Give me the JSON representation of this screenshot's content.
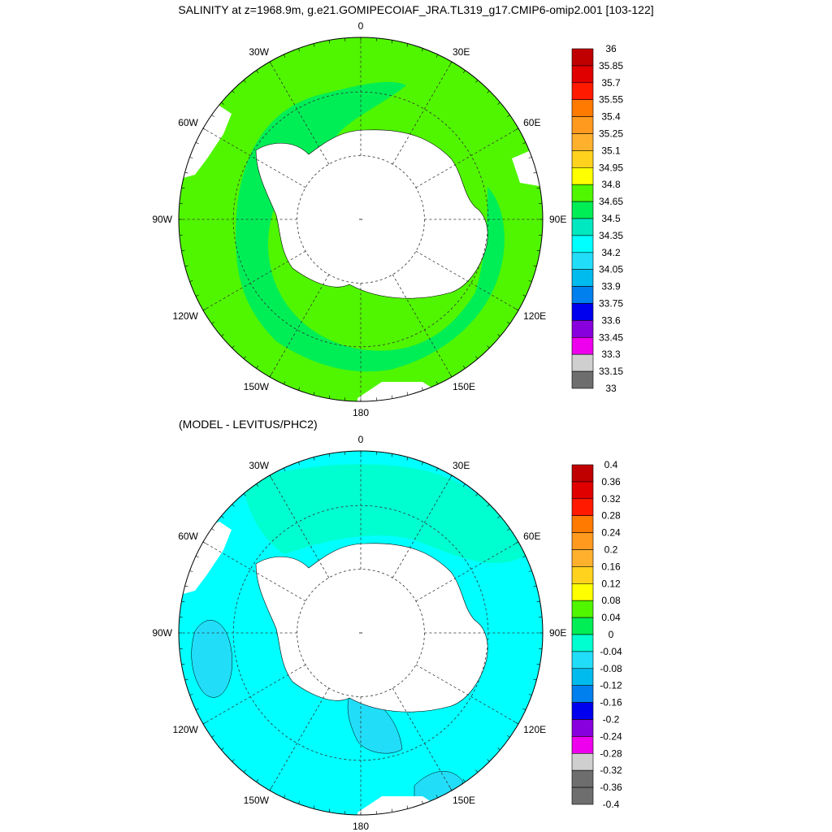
{
  "title": "SALINITY at z=1968.9m, g.e21.GOMIPECOIAF_JRA.TL319_g17.CMIP6-omip2.001 [103-122]",
  "subtitle": "(MODEL - LEVITUS/PHC2)",
  "longitude_labels": [
    "0",
    "30E",
    "60E",
    "90E",
    "120E",
    "150E",
    "180",
    "150W",
    "120W",
    "90W",
    "60W",
    "30W"
  ],
  "top_colorbar": {
    "labels": [
      "36",
      "35.85",
      "35.7",
      "35.55",
      "35.4",
      "35.25",
      "35.1",
      "34.95",
      "34.8",
      "34.65",
      "34.5",
      "34.35",
      "34.2",
      "34.05",
      "33.9",
      "33.75",
      "33.6",
      "33.45",
      "33.3",
      "33.15",
      "33"
    ],
    "colors": [
      "#c00000",
      "#e00000",
      "#ff1a00",
      "#ff7a00",
      "#ff9a1f",
      "#ffb12e",
      "#ffd21e",
      "#ffff00",
      "#50f500",
      "#00ee55",
      "#00e8c0",
      "#00ffff",
      "#22ddf8",
      "#00bbee",
      "#0080ee",
      "#0000ee",
      "#8800dd",
      "#ee00ee",
      "#cfcfcf",
      "#6e6e6e"
    ]
  },
  "bottom_colorbar": {
    "labels": [
      "0.4",
      "0.36",
      "0.32",
      "0.28",
      "0.24",
      "0.2",
      "0.16",
      "0.12",
      "0.08",
      "0.04",
      "0",
      "-0.04",
      "-0.08",
      "-0.12",
      "-0.16",
      "-0.2",
      "-0.24",
      "-0.28",
      "-0.32",
      "-0.36",
      "-0.4"
    ],
    "colors": [
      "#c00000",
      "#e00000",
      "#ff1a00",
      "#ff7a00",
      "#ff9a1f",
      "#ffb12e",
      "#ffd21e",
      "#ffff00",
      "#50f500",
      "#00ee55",
      "#00ffd0",
      "#22ddf8",
      "#00bbee",
      "#0080ee",
      "#0000ee",
      "#8800dd",
      "#ee00ee",
      "#cfcfcf",
      "#6e6e6e",
      "#6e6e6e"
    ]
  },
  "map_colors": {
    "top_background": "#50f500",
    "top_secondary": "#00ee55",
    "bottom_background": "#00ffff",
    "bottom_secondary": "#22ddf8",
    "bottom_tertiary": "#00ffd0",
    "land": "#ffffff"
  }
}
